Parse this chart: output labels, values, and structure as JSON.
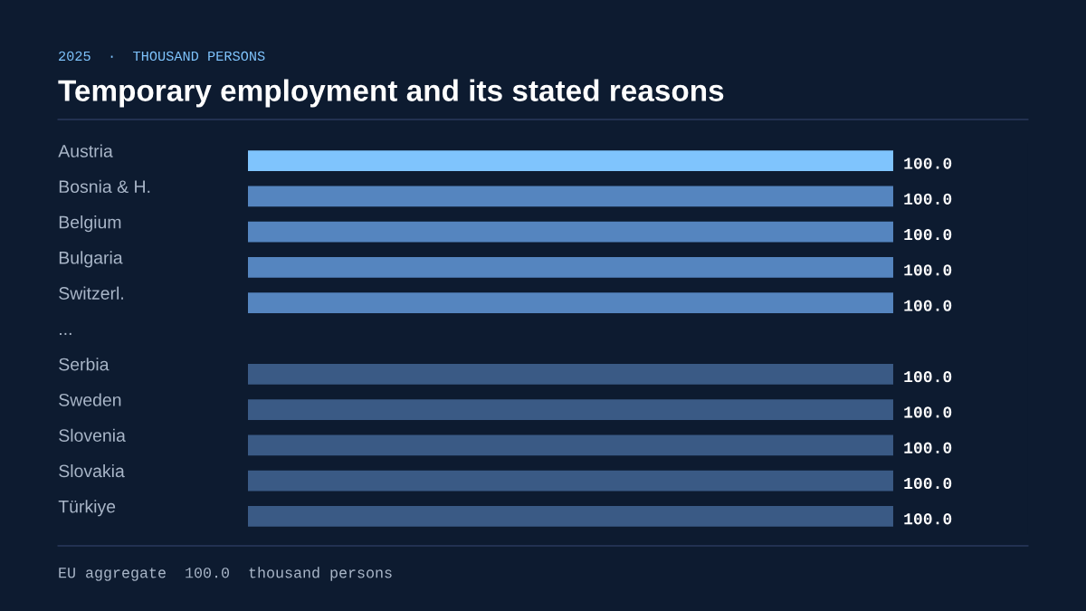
{
  "chart_data": {
    "type": "bar",
    "orientation": "horizontal",
    "title": "Temporary employment and its stated reasons",
    "subtitle": "2025  ·  THOUSAND PERSONS",
    "categories": [
      "Austria",
      "Bosnia & H.",
      "Belgium",
      "Bulgaria",
      "Switzerl.",
      "...",
      "Serbia",
      "Sweden",
      "Slovenia",
      "Slovakia",
      "Türkiye"
    ],
    "values": [
      100.0,
      100.0,
      100.0,
      100.0,
      100.0,
      null,
      100.0,
      100.0,
      100.0,
      100.0,
      100.0
    ],
    "colors": [
      "#7fc4fd",
      "#5585bf",
      "#5585bf",
      "#5585bf",
      "#5585bf",
      null,
      "#3a5a85",
      "#3a5a85",
      "#3a5a85",
      "#3a5a85",
      "#3a5a85"
    ],
    "value_labels": [
      "100.0",
      "100.0",
      "100.0",
      "100.0",
      "100.0",
      null,
      "100.0",
      "100.0",
      "100.0",
      "100.0",
      "100.0"
    ],
    "annotations": [
      "EU aggregate  100.0  thousand persons"
    ],
    "grid": false,
    "legend": false
  }
}
